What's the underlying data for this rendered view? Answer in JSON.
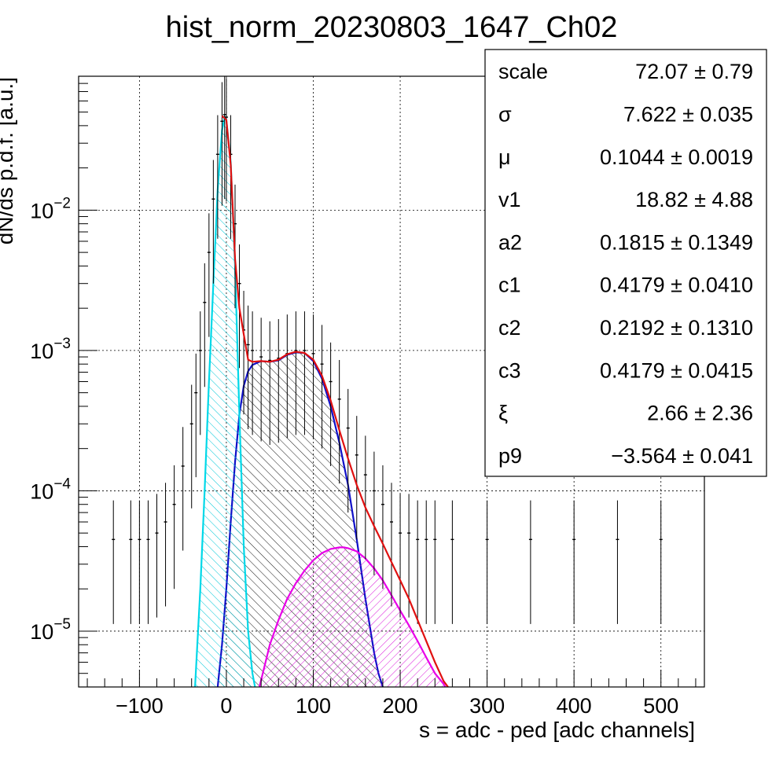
{
  "chart_data": {
    "type": "histogram",
    "title": "hist_norm_20230803_1647_Ch02",
    "xlabel": "s = adc - ped [adc channels]",
    "ylabel": "dN/ds p.d.f. [a.u.]",
    "xlim": [
      -170,
      550
    ],
    "ylim": [
      4e-06,
      0.09
    ],
    "yscale": "log",
    "grid": true,
    "x_ticks": [
      -100,
      0,
      100,
      200,
      300,
      400,
      500
    ],
    "x_tick_labels": [
      "−100",
      "0",
      "100",
      "200",
      "300",
      "400",
      "500"
    ],
    "y_ticks": [
      1e-05,
      0.0001,
      0.001,
      0.01
    ],
    "y_tick_labels": [
      {
        "base": "10",
        "exp": "−5"
      },
      {
        "base": "10",
        "exp": "−4"
      },
      {
        "base": "10",
        "exp": "−3"
      },
      {
        "base": "10",
        "exp": "−2"
      }
    ],
    "stats_box": {
      "position": "top-right",
      "rows": [
        {
          "name": "scale",
          "value": "72.07 ± 0.79"
        },
        {
          "name": "σ",
          "value": "7.622 ± 0.035"
        },
        {
          "name": "μ",
          "value": "0.1044 ± 0.0019"
        },
        {
          "name": "v1",
          "value": "18.82 ± 4.88"
        },
        {
          "name": "a2",
          "value": "0.1815 ± 0.1349"
        },
        {
          "name": "c1",
          "value": "0.4179 ± 0.0410"
        },
        {
          "name": "c2",
          "value": "0.2192 ± 0.1310"
        },
        {
          "name": "c3",
          "value": "0.4179 ± 0.0415"
        },
        {
          "name": "ξ",
          "value": "2.66 ± 2.36"
        },
        {
          "name": "p9",
          "value": "−3.564 ± 0.041"
        }
      ]
    },
    "series": [
      {
        "color": "#000000",
        "style": "data-with-errors",
        "x": [
          -130,
          -110,
          -100,
          -90,
          -80,
          -70,
          -60,
          -50,
          -40,
          -35,
          -30,
          -25,
          -20,
          -15,
          -10,
          -5,
          -2,
          0,
          5,
          10,
          15,
          20,
          25,
          30,
          40,
          50,
          60,
          70,
          80,
          90,
          100,
          110,
          120,
          130,
          140,
          150,
          160,
          170,
          180,
          190,
          200,
          210,
          220,
          230,
          240,
          260,
          300,
          350,
          400,
          450,
          500
        ],
        "y": [
          4.5e-05,
          4.5e-05,
          4.5e-05,
          4.5e-05,
          5e-05,
          6e-05,
          8e-05,
          0.00015,
          0.0003,
          0.0005,
          0.001,
          0.0022,
          0.005,
          0.012,
          0.025,
          0.043,
          0.048,
          0.046,
          0.025,
          0.008,
          0.003,
          0.0014,
          0.0011,
          0.001,
          0.0009,
          0.00085,
          0.00088,
          0.00095,
          0.001,
          0.001,
          0.00095,
          0.0008,
          0.0006,
          0.00045,
          0.00028,
          0.00018,
          0.00013,
          0.0001,
          8e-05,
          6e-05,
          5e-05,
          5e-05,
          4.5e-05,
          4.5e-05,
          4.5e-05,
          4.5e-05,
          4.5e-05,
          4.5e-05,
          4.5e-05,
          4.5e-05,
          4.5e-05
        ]
      },
      {
        "color": "#e01010",
        "style": "line",
        "x": [
          -5,
          0,
          5,
          10,
          15,
          20,
          25,
          30,
          40,
          50,
          60,
          70,
          80,
          90,
          100,
          110,
          120,
          130,
          140,
          150,
          160,
          170,
          180,
          190,
          200,
          210,
          220,
          230,
          240,
          250,
          255
        ],
        "y": [
          0.047,
          0.044,
          0.021,
          0.0045,
          0.002,
          0.0013,
          0.00086,
          0.00083,
          0.00084,
          0.00083,
          0.00086,
          0.00094,
          0.00098,
          0.00096,
          0.00086,
          0.00066,
          0.00044,
          0.00027,
          0.00017,
          0.00011,
          7.6e-05,
          5.6e-05,
          4.2e-05,
          3.1e-05,
          2.3e-05,
          1.7e-05,
          1.2e-05,
          8.5e-06,
          6e-06,
          4.4e-06,
          4e-06
        ]
      },
      {
        "color": "#00d8e8",
        "style": "filled-hatched",
        "x": [
          -36,
          -30,
          -25,
          -20,
          -15,
          -10,
          -5,
          -2,
          0,
          5,
          10,
          15,
          20,
          25,
          30,
          33
        ],
        "y": [
          4e-06,
          2e-05,
          0.0001,
          0.0006,
          0.003,
          0.014,
          0.037,
          0.046,
          0.044,
          0.022,
          0.004,
          0.00035,
          4e-05,
          1e-05,
          5e-06,
          4e-06
        ]
      },
      {
        "color": "#1010c8",
        "style": "filled-hatched",
        "x": [
          -10,
          -5,
          0,
          5,
          10,
          15,
          20,
          25,
          30,
          40,
          50,
          60,
          70,
          80,
          90,
          100,
          110,
          120,
          130,
          140,
          150,
          160,
          170,
          175,
          180
        ],
        "y": [
          4e-06,
          8e-06,
          2e-05,
          6e-05,
          0.00016,
          0.00035,
          0.00056,
          0.00071,
          0.00079,
          0.00084,
          0.00083,
          0.00085,
          0.00093,
          0.00097,
          0.00096,
          0.00084,
          0.00063,
          0.0004,
          0.00022,
          0.00011,
          4.5e-05,
          1.7e-05,
          7e-06,
          5e-06,
          4e-06
        ]
      },
      {
        "color": "#e800e8",
        "style": "filled-hatched",
        "x": [
          38,
          50,
          60,
          70,
          80,
          90,
          100,
          110,
          120,
          130,
          135,
          140,
          150,
          160,
          170,
          180,
          190,
          200,
          210,
          220,
          230,
          240,
          250,
          252
        ],
        "y": [
          4e-06,
          8e-06,
          1.2e-05,
          1.7e-05,
          2.2e-05,
          2.7e-05,
          3.2e-05,
          3.6e-05,
          3.85e-05,
          3.95e-05,
          3.95e-05,
          3.9e-05,
          3.7e-05,
          3.3e-05,
          2.8e-05,
          2.3e-05,
          1.8e-05,
          1.4e-05,
          1.1e-05,
          8.5e-06,
          6.5e-06,
          5e-06,
          4.2e-06,
          4e-06
        ]
      }
    ]
  }
}
